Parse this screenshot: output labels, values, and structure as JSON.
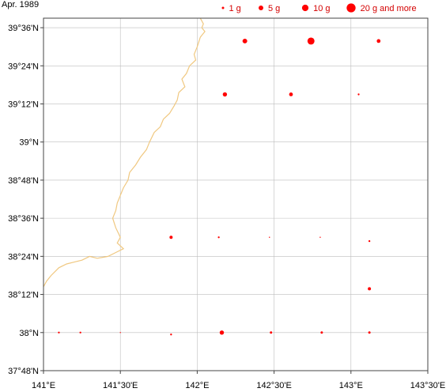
{
  "title": "Apr. 1989",
  "colors": {
    "marker": "#ff0000",
    "legend_text": "#d40000",
    "coastline": "#f0c880",
    "grid": "#bdbdbd",
    "frame": "#444444"
  },
  "legend": [
    {
      "label": "1 g",
      "value": 1
    },
    {
      "label": "5 g",
      "value": 5
    },
    {
      "label": "10 g",
      "value": 10
    },
    {
      "label": "20 g and more",
      "value": 20
    }
  ],
  "axes": {
    "lon_range": [
      141.0,
      143.5
    ],
    "lat_range": [
      37.8,
      39.65
    ],
    "x_ticks": [
      {
        "value": 141.0,
        "label": "141°E"
      },
      {
        "value": 141.5,
        "label": "141°30'E"
      },
      {
        "value": 142.0,
        "label": "142°E"
      },
      {
        "value": 142.5,
        "label": "142°30'E"
      },
      {
        "value": 143.0,
        "label": "143°E"
      },
      {
        "value": 143.5,
        "label": "143°30'E"
      }
    ],
    "y_ticks": [
      {
        "value": 39.6,
        "label": "39°36'N"
      },
      {
        "value": 39.4,
        "label": "39°24'N"
      },
      {
        "value": 39.2,
        "label": "39°12'N"
      },
      {
        "value": 39.0,
        "label": "39°N"
      },
      {
        "value": 38.8,
        "label": "38°48'N"
      },
      {
        "value": 38.6,
        "label": "38°36'N"
      },
      {
        "value": 38.4,
        "label": "38°24'N"
      },
      {
        "value": 38.2,
        "label": "38°12'N"
      },
      {
        "value": 38.0,
        "label": "38°N"
      },
      {
        "value": 37.8,
        "label": "37°48'N"
      }
    ]
  },
  "stations": [
    {
      "lon": 142.31,
      "lat": 39.53,
      "value": 5
    },
    {
      "lon": 142.74,
      "lat": 39.53,
      "value": 12
    },
    {
      "lon": 143.18,
      "lat": 39.53,
      "value": 3
    },
    {
      "lon": 142.18,
      "lat": 39.25,
      "value": 4
    },
    {
      "lon": 142.61,
      "lat": 39.25,
      "value": 3
    },
    {
      "lon": 143.05,
      "lat": 39.25,
      "value": 0.5
    },
    {
      "lon": 141.83,
      "lat": 38.5,
      "value": 2
    },
    {
      "lon": 142.14,
      "lat": 38.5,
      "value": 0.5
    },
    {
      "lon": 142.47,
      "lat": 38.5,
      "value": 0.1
    },
    {
      "lon": 142.8,
      "lat": 38.5,
      "value": 0.1
    },
    {
      "lon": 143.12,
      "lat": 38.48,
      "value": 0.5
    },
    {
      "lon": 143.12,
      "lat": 38.23,
      "value": 2
    },
    {
      "lon": 141.1,
      "lat": 38.0,
      "value": 0.5
    },
    {
      "lon": 141.24,
      "lat": 38.0,
      "value": 0.5
    },
    {
      "lon": 141.5,
      "lat": 38.0,
      "value": 0.1
    },
    {
      "lon": 141.83,
      "lat": 37.99,
      "value": 0.5
    },
    {
      "lon": 142.16,
      "lat": 38.0,
      "value": 4
    },
    {
      "lon": 142.48,
      "lat": 38.0,
      "value": 1
    },
    {
      "lon": 142.81,
      "lat": 38.0,
      "value": 1
    },
    {
      "lon": 143.12,
      "lat": 38.0,
      "value": 1
    }
  ],
  "coastline": [
    [
      142.02,
      39.65
    ],
    [
      142.04,
      39.62
    ],
    [
      142.03,
      39.6
    ],
    [
      142.05,
      39.58
    ],
    [
      142.02,
      39.55
    ],
    [
      142.0,
      39.5
    ],
    [
      141.98,
      39.46
    ],
    [
      141.99,
      39.43
    ],
    [
      141.95,
      39.4
    ],
    [
      141.93,
      39.36
    ],
    [
      141.9,
      39.33
    ],
    [
      141.92,
      39.29
    ],
    [
      141.88,
      39.26
    ],
    [
      141.87,
      39.22
    ],
    [
      141.85,
      39.19
    ],
    [
      141.82,
      39.15
    ],
    [
      141.78,
      39.12
    ],
    [
      141.76,
      39.08
    ],
    [
      141.72,
      39.05
    ],
    [
      141.69,
      39.0
    ],
    [
      141.67,
      38.96
    ],
    [
      141.63,
      38.92
    ],
    [
      141.6,
      38.88
    ],
    [
      141.56,
      38.84
    ],
    [
      141.55,
      38.8
    ],
    [
      141.52,
      38.76
    ],
    [
      141.5,
      38.72
    ],
    [
      141.48,
      38.68
    ],
    [
      141.47,
      38.64
    ],
    [
      141.45,
      38.6
    ],
    [
      141.47,
      38.55
    ],
    [
      141.5,
      38.5
    ],
    [
      141.48,
      38.47
    ],
    [
      141.52,
      38.44
    ],
    [
      141.47,
      38.42
    ],
    [
      141.42,
      38.4
    ],
    [
      141.35,
      38.39
    ],
    [
      141.3,
      38.4
    ],
    [
      141.25,
      38.38
    ],
    [
      141.2,
      38.37
    ],
    [
      141.15,
      38.36
    ],
    [
      141.1,
      38.34
    ],
    [
      141.05,
      38.3
    ],
    [
      141.02,
      38.27
    ],
    [
      141.0,
      38.24
    ]
  ]
}
